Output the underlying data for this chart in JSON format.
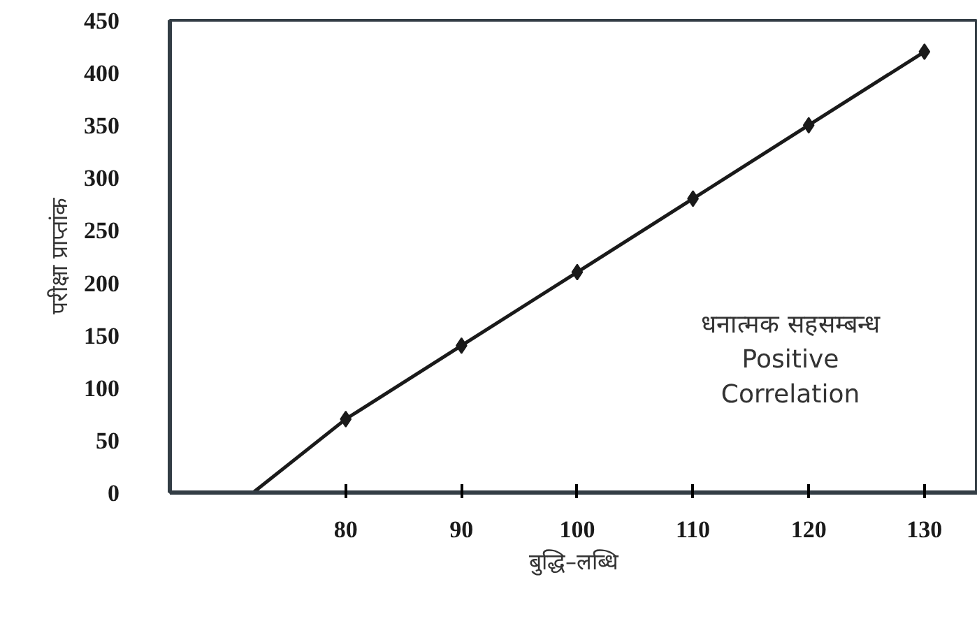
{
  "chart_data": {
    "type": "line",
    "xlabel": "बुद्धि–लब्धि",
    "ylabel": "परीक्षा प्राप्तांक",
    "xlim": [
      64.8,
      134.6
    ],
    "ylim": [
      0,
      450
    ],
    "xticks": [
      80,
      90,
      100,
      110,
      120,
      130
    ],
    "yticks": [
      0,
      50,
      100,
      150,
      200,
      250,
      300,
      350,
      400,
      450
    ],
    "series": [
      {
        "color": "#1a1a1a",
        "x": [
          72,
          80,
          90,
          100,
          110,
          120,
          130
        ],
        "values": [
          0,
          70,
          140,
          210,
          280,
          350,
          420
        ],
        "marker": "none"
      },
      {
        "type": "scatter",
        "color": "#1a1a1a",
        "x": [
          80,
          90,
          100,
          110,
          120,
          130
        ],
        "values": [
          70,
          140,
          210,
          280,
          350,
          420
        ],
        "marker": "diamond"
      }
    ],
    "annotations": [
      "धनात्मक सहसम्बन्ध",
      "Positive",
      "Correlation"
    ],
    "grid": false
  }
}
